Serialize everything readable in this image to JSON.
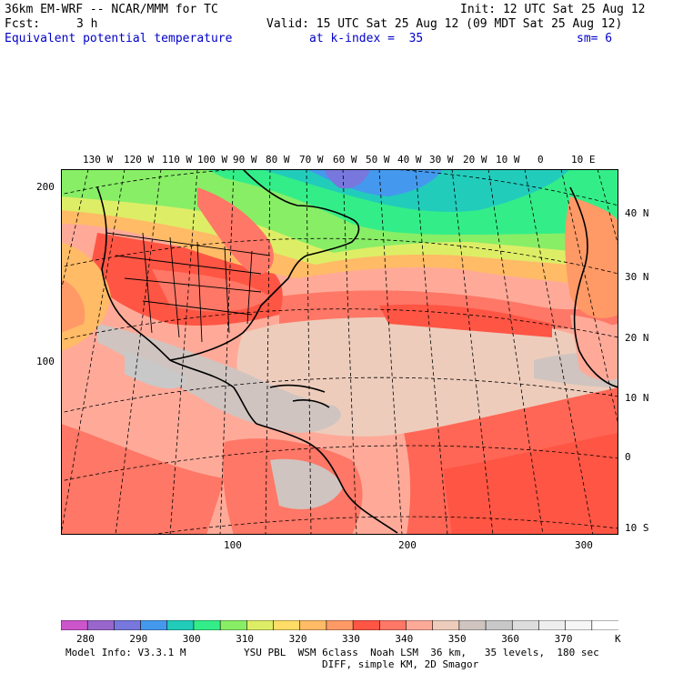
{
  "header": {
    "model": "36km EM-WRF -- NCAR/MMM for TC",
    "init": "Init: 12 UTC Sat 25 Aug 12",
    "fcst_label": "Fcst:",
    "fcst_value": "3 h",
    "valid": "Valid: 15 UTC Sat 25 Aug 12 (09 MDT Sat 25 Aug 12)",
    "field": "Equivalent potential temperature",
    "level": "at k-index =  35",
    "smooth": "sm= 6"
  },
  "lon_labels": [
    "130 W",
    "120 W",
    "110 W",
    "100 W",
    "90 W",
    "80 W",
    "70 W",
    "60 W",
    "50 W",
    "40 W",
    "30 W",
    "20 W",
    "10 W",
    "0",
    "10 E"
  ],
  "lat_labels": [
    "40 N",
    "30 N",
    "20 N",
    "10 N",
    "0",
    "10 S"
  ],
  "grid_y_labels": [
    "200",
    "100"
  ],
  "grid_x_labels": [
    "100",
    "200",
    "300"
  ],
  "colorbar": {
    "labels": [
      "280",
      "290",
      "300",
      "310",
      "320",
      "330",
      "340",
      "350",
      "360",
      "370"
    ],
    "unit": "K",
    "colors": [
      "#cc55cc",
      "#9966cc",
      "#7777dd",
      "#4499ee",
      "#22ccbb",
      "#33ee88",
      "#88ee66",
      "#ddee66",
      "#ffdd66",
      "#ffbb66",
      "#ff9966",
      "#ff5544",
      "#ff7766",
      "#ffaa99",
      "#eeccbb",
      "#cfc4c0",
      "#c8c8c8",
      "#dddddd",
      "#eeeeee",
      "#f6f6f6",
      "#ffffff"
    ]
  },
  "footer": {
    "info": "Model Info: V3.3.1 M",
    "physics": "YSU PBL  WSM 6class  Noah LSM  36 km,   35 levels,  180 sec",
    "diff": "DIFF, simple KM, 2D Smagor"
  }
}
